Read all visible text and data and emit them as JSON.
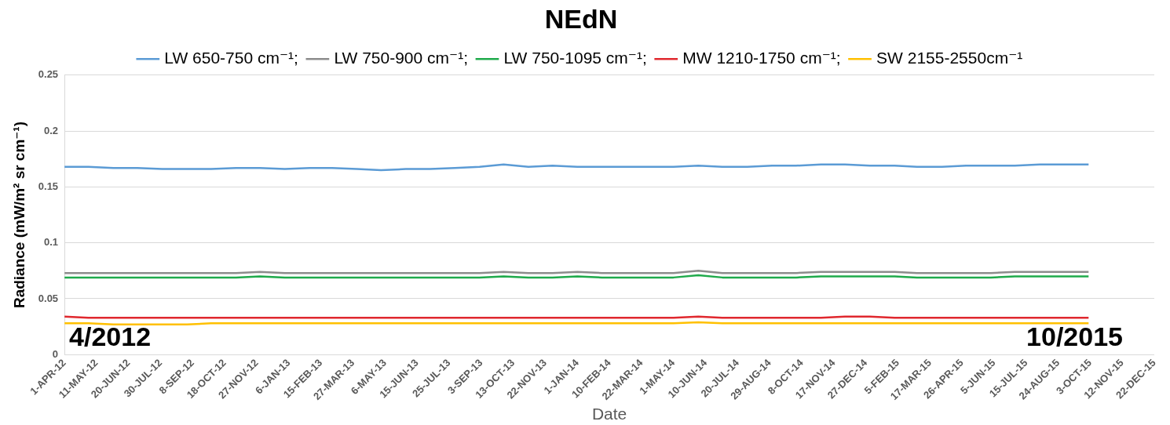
{
  "chart_data": {
    "type": "line",
    "title": "NEdN",
    "xlabel": "Date",
    "ylabel": "Radiance (mW/m² sr cm⁻¹)",
    "x": [
      "2012-04-01",
      "2012-05-01",
      "2012-06-01",
      "2012-07-01",
      "2012-08-01",
      "2012-09-01",
      "2012-10-01",
      "2012-11-01",
      "2012-12-01",
      "2013-01-01",
      "2013-02-01",
      "2013-03-01",
      "2013-04-01",
      "2013-05-01",
      "2013-06-01",
      "2013-07-01",
      "2013-08-01",
      "2013-09-01",
      "2013-10-01",
      "2013-11-01",
      "2013-12-01",
      "2014-01-01",
      "2014-02-01",
      "2014-03-01",
      "2014-04-01",
      "2014-05-01",
      "2014-06-01",
      "2014-07-01",
      "2014-08-01",
      "2014-09-01",
      "2014-10-01",
      "2014-11-01",
      "2014-12-01",
      "2015-01-01",
      "2015-02-01",
      "2015-03-01",
      "2015-04-01",
      "2015-05-01",
      "2015-06-01",
      "2015-07-01",
      "2015-08-01",
      "2015-09-01",
      "2015-10-01"
    ],
    "series": [
      {
        "name": "LW 650-750 cm⁻¹;",
        "color": "#5b9bd5",
        "values": [
          0.168,
          0.168,
          0.167,
          0.167,
          0.166,
          0.166,
          0.166,
          0.167,
          0.167,
          0.166,
          0.167,
          0.167,
          0.166,
          0.165,
          0.166,
          0.166,
          0.167,
          0.168,
          0.17,
          0.168,
          0.169,
          0.168,
          0.168,
          0.168,
          0.168,
          0.168,
          0.169,
          0.168,
          0.168,
          0.169,
          0.169,
          0.17,
          0.17,
          0.169,
          0.169,
          0.168,
          0.168,
          0.169,
          0.169,
          0.169,
          0.17,
          0.17,
          0.17
        ]
      },
      {
        "name": "LW 750-900 cm⁻¹;",
        "color": "#8c8c8c",
        "values": [
          0.073,
          0.073,
          0.073,
          0.073,
          0.073,
          0.073,
          0.073,
          0.073,
          0.074,
          0.073,
          0.073,
          0.073,
          0.073,
          0.073,
          0.073,
          0.073,
          0.073,
          0.073,
          0.074,
          0.073,
          0.073,
          0.074,
          0.073,
          0.073,
          0.073,
          0.073,
          0.075,
          0.073,
          0.073,
          0.073,
          0.073,
          0.074,
          0.074,
          0.074,
          0.074,
          0.073,
          0.073,
          0.073,
          0.073,
          0.074,
          0.074,
          0.074,
          0.074
        ]
      },
      {
        "name": "LW 750-1095 cm⁻¹;",
        "color": "#1faa4b",
        "values": [
          0.069,
          0.069,
          0.069,
          0.069,
          0.069,
          0.069,
          0.069,
          0.069,
          0.07,
          0.069,
          0.069,
          0.069,
          0.069,
          0.069,
          0.069,
          0.069,
          0.069,
          0.069,
          0.07,
          0.069,
          0.069,
          0.07,
          0.069,
          0.069,
          0.069,
          0.069,
          0.071,
          0.069,
          0.069,
          0.069,
          0.069,
          0.07,
          0.07,
          0.07,
          0.07,
          0.069,
          0.069,
          0.069,
          0.069,
          0.07,
          0.07,
          0.07,
          0.07
        ]
      },
      {
        "name": "MW 1210-1750 cm⁻¹;",
        "color": "#e0282e",
        "values": [
          0.034,
          0.033,
          0.033,
          0.033,
          0.033,
          0.033,
          0.033,
          0.033,
          0.033,
          0.033,
          0.033,
          0.033,
          0.033,
          0.033,
          0.033,
          0.033,
          0.033,
          0.033,
          0.033,
          0.033,
          0.033,
          0.033,
          0.033,
          0.033,
          0.033,
          0.033,
          0.034,
          0.033,
          0.033,
          0.033,
          0.033,
          0.033,
          0.034,
          0.034,
          0.033,
          0.033,
          0.033,
          0.033,
          0.033,
          0.033,
          0.033,
          0.033,
          0.033
        ]
      },
      {
        "name": "SW 2155-2550cm⁻¹",
        "color": "#ffc000",
        "values": [
          0.028,
          0.028,
          0.027,
          0.027,
          0.027,
          0.027,
          0.028,
          0.028,
          0.028,
          0.028,
          0.028,
          0.028,
          0.028,
          0.028,
          0.028,
          0.028,
          0.028,
          0.028,
          0.028,
          0.028,
          0.028,
          0.028,
          0.028,
          0.028,
          0.028,
          0.028,
          0.029,
          0.028,
          0.028,
          0.028,
          0.028,
          0.028,
          0.028,
          0.028,
          0.028,
          0.028,
          0.028,
          0.028,
          0.028,
          0.028,
          0.028,
          0.028,
          0.028
        ]
      }
    ],
    "xlim": [
      "2012-04-01",
      "2015-12-22"
    ],
    "xticks": [
      {
        "value": "2012-04-01",
        "label": "1-APR-12"
      },
      {
        "value": "2012-05-11",
        "label": "11-MAY-12"
      },
      {
        "value": "2012-06-20",
        "label": "20-JUN-12"
      },
      {
        "value": "2012-07-30",
        "label": "30-JUL-12"
      },
      {
        "value": "2012-09-08",
        "label": "8-SEP-12"
      },
      {
        "value": "2012-10-18",
        "label": "18-OCT-12"
      },
      {
        "value": "2012-11-27",
        "label": "27-NOV-12"
      },
      {
        "value": "2013-01-06",
        "label": "6-JAN-13"
      },
      {
        "value": "2013-02-15",
        "label": "15-FEB-13"
      },
      {
        "value": "2013-03-27",
        "label": "27-MAR-13"
      },
      {
        "value": "2013-05-06",
        "label": "6-MAY-13"
      },
      {
        "value": "2013-06-15",
        "label": "15-JUN-13"
      },
      {
        "value": "2013-07-25",
        "label": "25-JUL-13"
      },
      {
        "value": "2013-09-03",
        "label": "3-SEP-13"
      },
      {
        "value": "2013-10-13",
        "label": "13-OCT-13"
      },
      {
        "value": "2013-11-22",
        "label": "22-NOV-13"
      },
      {
        "value": "2014-01-01",
        "label": "1-JAN-14"
      },
      {
        "value": "2014-02-10",
        "label": "10-FEB-14"
      },
      {
        "value": "2014-03-22",
        "label": "22-MAR-14"
      },
      {
        "value": "2014-05-01",
        "label": "1-MAY-14"
      },
      {
        "value": "2014-06-10",
        "label": "10-JUN-14"
      },
      {
        "value": "2014-07-20",
        "label": "20-JUL-14"
      },
      {
        "value": "2014-08-29",
        "label": "29-AUG-14"
      },
      {
        "value": "2014-10-08",
        "label": "8-OCT-14"
      },
      {
        "value": "2014-11-17",
        "label": "17-NOV-14"
      },
      {
        "value": "2014-12-27",
        "label": "27-DEC-14"
      },
      {
        "value": "2015-02-05",
        "label": "5-FEB-15"
      },
      {
        "value": "2015-03-17",
        "label": "17-MAR-15"
      },
      {
        "value": "2015-04-26",
        "label": "26-APR-15"
      },
      {
        "value": "2015-06-05",
        "label": "5-JUN-15"
      },
      {
        "value": "2015-07-15",
        "label": "15-JUL-15"
      },
      {
        "value": "2015-08-24",
        "label": "24-AUG-15"
      },
      {
        "value": "2015-10-03",
        "label": "3-OCT-15"
      },
      {
        "value": "2015-11-12",
        "label": "12-NOV-15"
      },
      {
        "value": "2015-12-22",
        "label": "22-DEC-15"
      }
    ],
    "ylim": [
      0,
      0.25
    ],
    "yticks": [
      0,
      0.05,
      0.1,
      0.15,
      0.2,
      0.25
    ],
    "grid": "y",
    "legend": "top",
    "marker": "none",
    "line_style": "solid",
    "annotations": [
      "4/2012",
      "10/2015"
    ]
  }
}
